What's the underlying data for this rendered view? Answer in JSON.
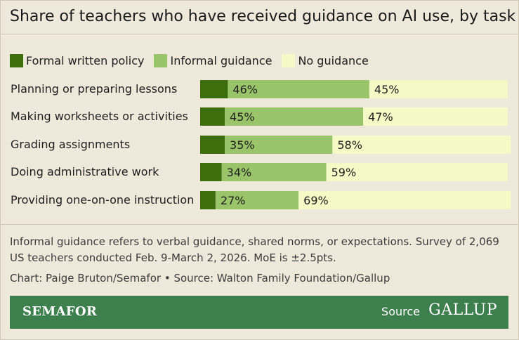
{
  "title": "Share of teachers who have received guidance on AI use, by task",
  "colors": {
    "formal": "#3c6e0e",
    "informal": "#99c46a",
    "none": "#f4f9c6",
    "footer": "#3d7f4d"
  },
  "chart_data": {
    "type": "bar",
    "stacked": true,
    "orientation": "horizontal",
    "title": "Share of teachers who have received guidance on AI use, by task",
    "legend_position": "top-left",
    "categories": [
      "Planning or preparing lessons",
      "Making worksheets or activities",
      "Grading assignments",
      "Doing administrative work",
      "Providing one-on-one instruction"
    ],
    "series": [
      {
        "name": "Formal written policy",
        "values": [
          9,
          8,
          8,
          7,
          5
        ]
      },
      {
        "name": "Informal guidance",
        "values": [
          46,
          45,
          35,
          34,
          27
        ]
      },
      {
        "name": "No guidance",
        "values": [
          45,
          47,
          58,
          59,
          69
        ]
      }
    ],
    "xlim": [
      0,
      100
    ]
  },
  "notes": {
    "text": "Informal guidance refers to verbal guidance, shared norms, or expectations. Survey of 2,069 US teachers conducted Feb. 9-March 2, 2026. MoE is ±2.5pts.",
    "credit": "Chart: Paige Bruton/Semafor • Source: Walton Family Foundation/Gallup"
  },
  "footer": {
    "brand": "SEMAFOR",
    "source_label": "Source",
    "source_brand": "GALLUP"
  }
}
